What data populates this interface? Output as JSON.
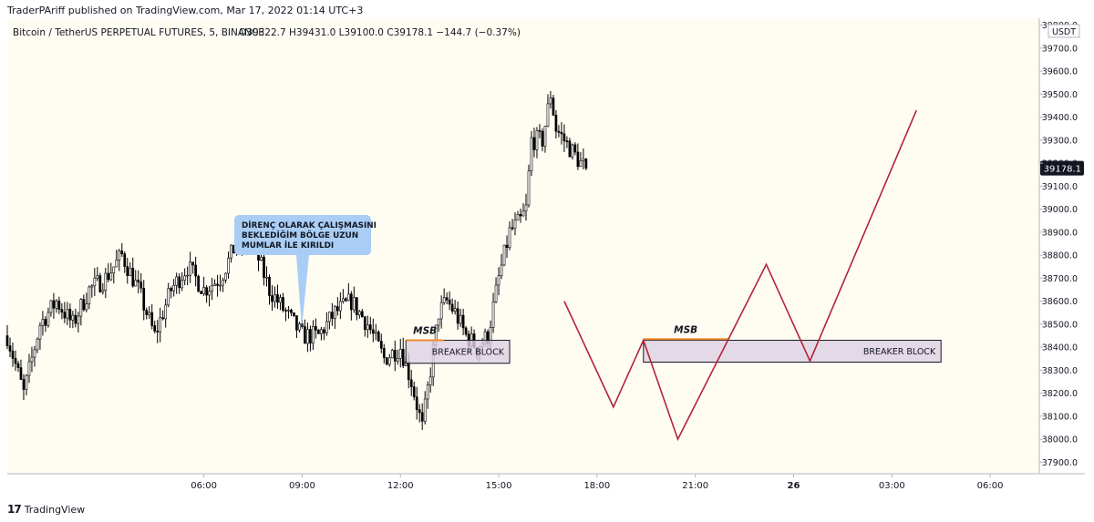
{
  "header": {
    "published": "TraderPAriff published on TradingView.com, Mar 17, 2022 01:14 UTC+3",
    "symbol_line": "Bitcoin / TetherUS PERPETUAL FUTURES, 5, BINANCE",
    "ohlc": "O39322.7  H39431.0  L39100.0  C39178.1  −144.7 (−0.37%)"
  },
  "footer": {
    "brand": "TradingView",
    "brand_mark": "17"
  },
  "colors": {
    "background": "#fffcf2",
    "candle_up": "#000000",
    "candle_down": "#000000",
    "projection_line": "#b2243a",
    "breaker_fill": "#ddd0e3",
    "msb_line": "#f0892d",
    "callout_fill": "#a9cdf5",
    "price_label_bg": "#131722"
  },
  "chart_data": {
    "type": "candlestick",
    "currency": "USDT",
    "ylim": [
      37850,
      39830
    ],
    "y_ticks": [
      37900,
      38000,
      38100,
      38200,
      38300,
      38400,
      38500,
      38600,
      38700,
      38800,
      38900,
      39000,
      39100,
      39200,
      39300,
      39400,
      39500,
      39600,
      39700,
      39800
    ],
    "y_tick_labels": [
      "37900.0",
      "38000.0",
      "38100.0",
      "38200.0",
      "38300.0",
      "38400.0",
      "38500.0",
      "38600.0",
      "38700.0",
      "38800.0",
      "38900.0",
      "39000.0",
      "39100.0",
      "39200.0",
      "39300.0",
      "39400.0",
      "39500.0",
      "39600.0",
      "39700.0",
      "39800.0"
    ],
    "x_ticks": [
      {
        "t": 360,
        "label": "06:00",
        "bold": false
      },
      {
        "t": 540,
        "label": "09:00",
        "bold": false
      },
      {
        "t": 720,
        "label": "12:00",
        "bold": false
      },
      {
        "t": 900,
        "label": "15:00",
        "bold": false
      },
      {
        "t": 1080,
        "label": "18:00",
        "bold": false
      },
      {
        "t": 1260,
        "label": "21:00",
        "bold": false
      },
      {
        "t": 1440,
        "label": "26",
        "bold": true
      },
      {
        "t": 1620,
        "label": "03:00",
        "bold": false
      },
      {
        "t": 1800,
        "label": "06:00",
        "bold": false
      }
    ],
    "xlim": [
      0,
      1890
    ],
    "last_price": {
      "value": 39178.1,
      "label": "39178.1"
    },
    "candle_keypoints": [
      [
        0,
        38450
      ],
      [
        30,
        38200
      ],
      [
        60,
        38500
      ],
      [
        90,
        38600
      ],
      [
        120,
        38500
      ],
      [
        150,
        38650
      ],
      [
        180,
        38700
      ],
      [
        210,
        38800
      ],
      [
        240,
        38650
      ],
      [
        270,
        38450
      ],
      [
        300,
        38650
      ],
      [
        330,
        38750
      ],
      [
        360,
        38650
      ],
      [
        390,
        38700
      ],
      [
        420,
        38850
      ],
      [
        450,
        38850
      ],
      [
        480,
        38650
      ],
      [
        510,
        38550
      ],
      [
        540,
        38450
      ],
      [
        570,
        38450
      ],
      [
        600,
        38550
      ],
      [
        630,
        38600
      ],
      [
        660,
        38500
      ],
      [
        690,
        38350
      ],
      [
        720,
        38400
      ],
      [
        740,
        38250
      ],
      [
        760,
        38050
      ],
      [
        775,
        38300
      ],
      [
        790,
        38550
      ],
      [
        805,
        38600
      ],
      [
        820,
        38550
      ],
      [
        840,
        38450
      ],
      [
        860,
        38400
      ],
      [
        880,
        38450
      ],
      [
        900,
        38700
      ],
      [
        920,
        38900
      ],
      [
        940,
        38950
      ],
      [
        950,
        39000
      ],
      [
        960,
        39300
      ],
      [
        980,
        39300
      ],
      [
        995,
        39500
      ],
      [
        1005,
        39350
      ],
      [
        1020,
        39300
      ],
      [
        1035,
        39250
      ],
      [
        1050,
        39200
      ],
      [
        1060,
        39180
      ]
    ],
    "candle_interval_min": 5,
    "projection_path": [
      {
        "t": 1020,
        "price": 38600
      },
      {
        "t": 1110,
        "price": 38140
      },
      {
        "t": 1165,
        "price": 38430
      },
      {
        "t": 1228,
        "price": 38000
      },
      {
        "t": 1390,
        "price": 38760
      },
      {
        "t": 1470,
        "price": 38340
      },
      {
        "t": 1665,
        "price": 39430
      }
    ],
    "annotations": {
      "callout_text": [
        "DİRENÇ OLARAK ÇALIŞMASINI",
        "BEKLEDİĞİM BÖLGE UZUN",
        "MUMLAR İLE KIRILDI"
      ],
      "zones": [
        {
          "label": "BREAKER BLOCK",
          "t_start": 730,
          "t_end": 920,
          "price_top": 38430,
          "price_bottom": 38330
        },
        {
          "label": "BREAKER BLOCK",
          "t_start": 1165,
          "t_end": 1710,
          "price_top": 38430,
          "price_bottom": 38335
        }
      ],
      "msb": [
        {
          "label": "MSB",
          "t_start": 730,
          "t_end": 800,
          "price": 38430
        },
        {
          "label": "MSB",
          "t_start": 1165,
          "t_end": 1320,
          "price": 38435
        }
      ]
    }
  }
}
